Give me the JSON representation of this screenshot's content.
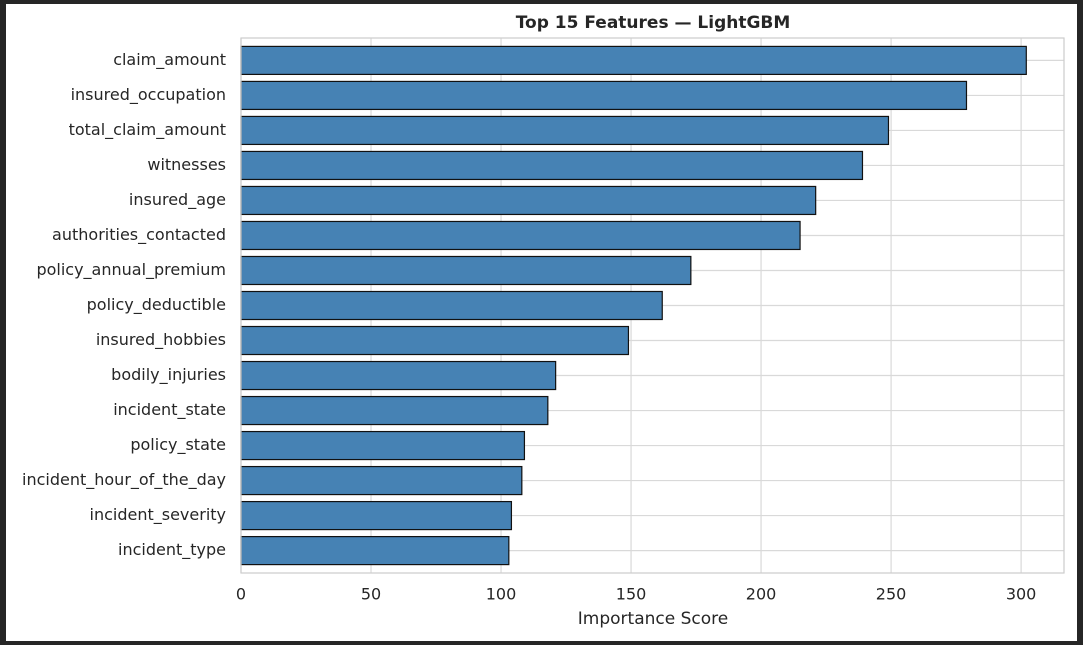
{
  "chart_data": {
    "type": "barh",
    "title": "Top 15 Features — LightGBM",
    "x_label": "Importance Score",
    "categories": [
      "claim_amount",
      "insured_occupation",
      "total_claim_amount",
      "witnesses",
      "insured_age",
      "authorities_contacted",
      "policy_annual_premium",
      "policy_deductible",
      "insured_hobbies",
      "bodily_injuries",
      "incident_state",
      "policy_state",
      "incident_hour_of_the_day",
      "incident_severity",
      "incident_type"
    ],
    "values": [
      302,
      279,
      249,
      239,
      221,
      215,
      173,
      162,
      149,
      121,
      118,
      109,
      108,
      104,
      103
    ],
    "color": "#4682b4",
    "xlim": [
      0,
      316.5
    ],
    "xticks": [
      0,
      50,
      100,
      150,
      200,
      250,
      300
    ],
    "grid": true
  }
}
